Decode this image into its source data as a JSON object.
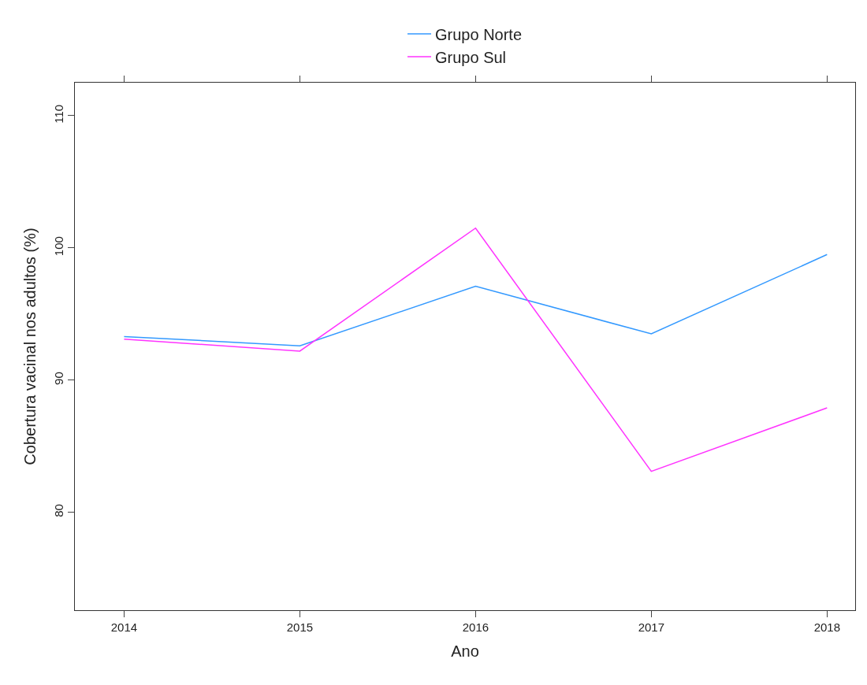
{
  "chart_data": {
    "type": "line",
    "xlabel": "Ano",
    "ylabel": "Cobertura vacinal nos adultos (%)",
    "x": [
      2014,
      2015,
      2016,
      2017,
      2018
    ],
    "series": [
      {
        "name": "Grupo Norte",
        "color": "#3399ff",
        "values": [
          93.3,
          92.6,
          97.1,
          93.5,
          99.5
        ]
      },
      {
        "name": "Grupo Sul",
        "color": "#ff33ff",
        "values": [
          93.1,
          92.2,
          101.5,
          83.1,
          87.9
        ]
      }
    ],
    "xlim": [
      2013.72,
      2018.16
    ],
    "xticks": [
      2014,
      2015,
      2016,
      2017,
      2018
    ],
    "ylim": [
      72.6,
      112.5
    ],
    "yticks": [
      80,
      90,
      100,
      110
    ],
    "legend": "top",
    "marker": "none",
    "line_style": "solid"
  }
}
